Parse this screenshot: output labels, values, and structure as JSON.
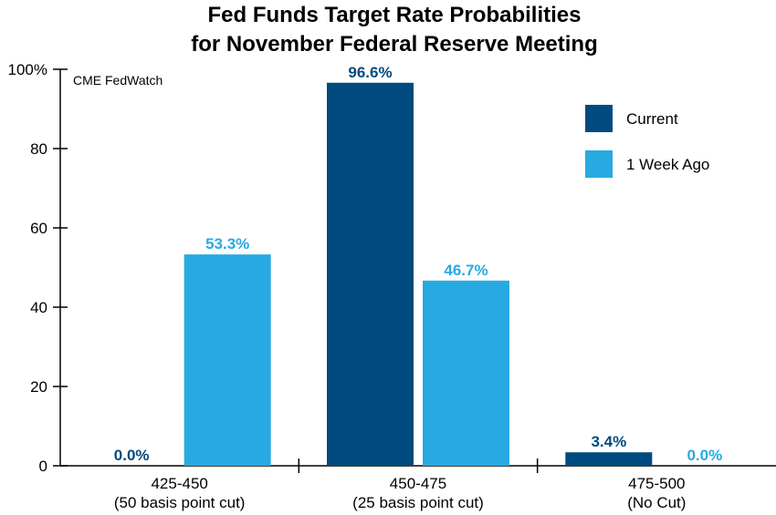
{
  "chart_data": {
    "type": "bar",
    "title": [
      "Fed Funds Target Rate Probabilities",
      "for November Federal Reserve Meeting"
    ],
    "source_note": "CME FedWatch",
    "categories": [
      {
        "line1": "425-450",
        "line2": "(50 basis point cut)"
      },
      {
        "line1": "450-475",
        "line2": "(25 basis point cut)"
      },
      {
        "line1": "475-500",
        "line2": "(No Cut)"
      }
    ],
    "series": [
      {
        "name": "Current",
        "color": "#004a80",
        "values": [
          0.0,
          96.6,
          3.4
        ],
        "labels": [
          "0.0%",
          "96.6%",
          "3.4%"
        ]
      },
      {
        "name": "1 Week Ago",
        "color": "#27aae1",
        "values": [
          53.3,
          46.7,
          0.0
        ],
        "labels": [
          "53.3%",
          "46.7%",
          "0.0%"
        ]
      }
    ],
    "y_ticks": [
      {
        "value": 0,
        "label": "0"
      },
      {
        "value": 20,
        "label": "20"
      },
      {
        "value": 40,
        "label": "40"
      },
      {
        "value": 60,
        "label": "60"
      },
      {
        "value": 80,
        "label": "80"
      },
      {
        "value": 100,
        "label": "100%"
      }
    ],
    "ylim": [
      0,
      100
    ],
    "legend_position": "top-right",
    "grid": false
  }
}
